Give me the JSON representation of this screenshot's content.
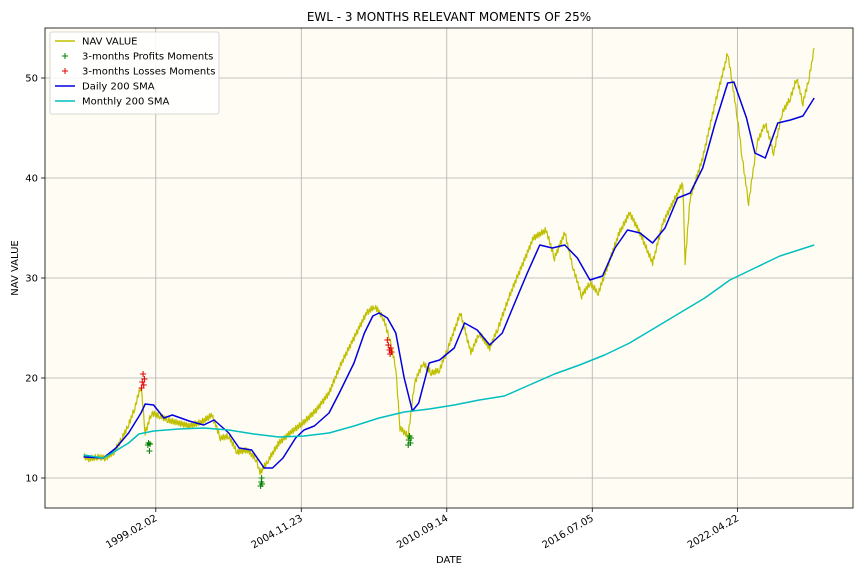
{
  "chart_data": {
    "type": "line",
    "title": "EWL - 3 MONTHS RELEVANT MOMENTS OF 25%",
    "xlabel": "DATE",
    "ylabel": "NAV VALUE",
    "xlim": [
      "1994-09-01",
      "2026-12-01"
    ],
    "ylim": [
      7,
      55
    ],
    "xticks": [
      "1999.02.02",
      "2004.11.23",
      "2010.09.14",
      "2016.07.05",
      "2022.04.22"
    ],
    "yticks": [
      10,
      20,
      30,
      40,
      50
    ],
    "grid": true,
    "legend_position": "top-left",
    "background": "#fffcf3",
    "series": [
      {
        "name": "NAV VALUE",
        "color": "#bfbf00",
        "style": "line",
        "points": [
          [
            "1996-03-18",
            12.2
          ],
          [
            "1996-06-01",
            11.9
          ],
          [
            "1996-10-01",
            12.1
          ],
          [
            "1997-02-01",
            12.0
          ],
          [
            "1997-06-01",
            12.6
          ],
          [
            "1997-10-01",
            14.0
          ],
          [
            "1998-01-01",
            15.3
          ],
          [
            "1998-04-01",
            17.0
          ],
          [
            "1998-07-01",
            19.3
          ],
          [
            "1998-09-01",
            14.5
          ],
          [
            "1998-12-01",
            16.5
          ],
          [
            "1999-04-01",
            16.2
          ],
          [
            "1999-08-01",
            15.8
          ],
          [
            "2000-01-01",
            15.5
          ],
          [
            "2000-06-01",
            15.2
          ],
          [
            "2000-12-01",
            15.6
          ],
          [
            "2001-05-01",
            16.3
          ],
          [
            "2001-09-01",
            14.0
          ],
          [
            "2002-01-01",
            14.2
          ],
          [
            "2002-05-01",
            12.6
          ],
          [
            "2002-10-01",
            12.8
          ],
          [
            "2003-02-01",
            11.9
          ],
          [
            "2003-04-01",
            10.5
          ],
          [
            "2003-08-01",
            11.8
          ],
          [
            "2004-01-01",
            13.5
          ],
          [
            "2004-07-01",
            14.6
          ],
          [
            "2005-01-01",
            15.6
          ],
          [
            "2005-07-01",
            16.8
          ],
          [
            "2006-01-01",
            18.5
          ],
          [
            "2006-07-01",
            21.5
          ],
          [
            "2007-01-01",
            24.0
          ],
          [
            "2007-07-01",
            26.5
          ],
          [
            "2007-11-01",
            27.2
          ],
          [
            "2008-03-01",
            26.0
          ],
          [
            "2008-06-01",
            24.0
          ],
          [
            "2008-09-01",
            21.0
          ],
          [
            "2008-11-01",
            15.0
          ],
          [
            "2009-03-01",
            14.2
          ],
          [
            "2009-06-01",
            19.5
          ],
          [
            "2009-10-01",
            21.5
          ],
          [
            "2010-02-01",
            20.5
          ],
          [
            "2010-06-01",
            20.8
          ],
          [
            "2010-10-01",
            23.0
          ],
          [
            "2011-04-01",
            26.5
          ],
          [
            "2011-09-01",
            22.5
          ],
          [
            "2012-01-01",
            24.5
          ],
          [
            "2012-06-01",
            23.0
          ],
          [
            "2012-10-01",
            25.0
          ],
          [
            "2013-04-01",
            28.5
          ],
          [
            "2013-10-01",
            31.5
          ],
          [
            "2014-03-01",
            34.0
          ],
          [
            "2014-09-01",
            34.8
          ],
          [
            "2015-01-01",
            32.0
          ],
          [
            "2015-06-01",
            34.5
          ],
          [
            "2015-10-01",
            31.0
          ],
          [
            "2016-02-01",
            28.2
          ],
          [
            "2016-06-01",
            29.5
          ],
          [
            "2016-10-01",
            28.5
          ],
          [
            "2017-03-01",
            31.5
          ],
          [
            "2017-08-01",
            34.5
          ],
          [
            "2018-01-01",
            36.5
          ],
          [
            "2018-06-01",
            34.5
          ],
          [
            "2018-12-01",
            31.5
          ],
          [
            "2019-05-01",
            35.5
          ],
          [
            "2019-12-01",
            38.5
          ],
          [
            "2020-02-15",
            39.5
          ],
          [
            "2020-03-20",
            31.5
          ],
          [
            "2020-06-01",
            38.0
          ],
          [
            "2020-12-01",
            42.0
          ],
          [
            "2021-06-01",
            47.5
          ],
          [
            "2021-12-01",
            52.5
          ],
          [
            "2022-04-22",
            46.0
          ],
          [
            "2022-07-01",
            42.0
          ],
          [
            "2022-10-01",
            37.5
          ],
          [
            "2023-02-01",
            43.5
          ],
          [
            "2023-06-01",
            45.5
          ],
          [
            "2023-10-01",
            42.5
          ],
          [
            "2024-02-01",
            46.5
          ],
          [
            "2024-06-01",
            48.0
          ],
          [
            "2024-09-01",
            50.0
          ],
          [
            "2024-12-01",
            47.5
          ],
          [
            "2025-03-01",
            50.0
          ],
          [
            "2025-05-15",
            53.0
          ]
        ]
      },
      {
        "name": "3-months Profits Moments",
        "color": "#008000",
        "style": "marker",
        "points": [
          [
            "1998-10-10",
            13.3
          ],
          [
            "1998-10-20",
            13.5
          ],
          [
            "1998-11-01",
            12.7
          ],
          [
            "1998-11-10",
            13.4
          ],
          [
            "2003-04-10",
            9.2
          ],
          [
            "2003-04-20",
            9.6
          ],
          [
            "2003-04-25",
            10.0
          ],
          [
            "2003-05-01",
            9.4
          ],
          [
            "2009-03-01",
            13.3
          ],
          [
            "2009-03-10",
            13.8
          ],
          [
            "2009-03-20",
            14.2
          ],
          [
            "2009-04-01",
            13.5
          ],
          [
            "2009-04-10",
            14.0
          ]
        ]
      },
      {
        "name": "3-months Losses Moments",
        "color": "#e00000",
        "style": "marker",
        "points": [
          [
            "1998-07-10",
            19.0
          ],
          [
            "1998-07-20",
            19.6
          ],
          [
            "1998-08-01",
            20.4
          ],
          [
            "1998-08-10",
            19.3
          ],
          [
            "1998-08-20",
            19.9
          ],
          [
            "2008-05-01",
            23.8
          ],
          [
            "2008-05-15",
            23.3
          ],
          [
            "2008-06-01",
            22.8
          ],
          [
            "2008-06-10",
            22.4
          ],
          [
            "2008-06-20",
            23.0
          ],
          [
            "2008-07-01",
            22.6
          ]
        ]
      },
      {
        "name": "Daily 200 SMA",
        "color": "#0000e0",
        "style": "line",
        "points": [
          [
            "1996-03-18",
            12.1
          ],
          [
            "1997-01-01",
            12.0
          ],
          [
            "1997-07-01",
            13.0
          ],
          [
            "1998-01-01",
            14.5
          ],
          [
            "1998-07-01",
            16.5
          ],
          [
            "1998-09-01",
            17.4
          ],
          [
            "1999-01-01",
            17.3
          ],
          [
            "1999-06-01",
            16.0
          ],
          [
            "1999-10-01",
            16.3
          ],
          [
            "2000-06-01",
            15.7
          ],
          [
            "2001-01-01",
            15.3
          ],
          [
            "2001-06-01",
            15.8
          ],
          [
            "2002-01-01",
            14.5
          ],
          [
            "2002-06-01",
            13.0
          ],
          [
            "2002-12-01",
            12.8
          ],
          [
            "2003-06-01",
            11.0
          ],
          [
            "2003-10-01",
            11.0
          ],
          [
            "2004-03-01",
            12.0
          ],
          [
            "2004-09-01",
            14.0
          ],
          [
            "2005-01-01",
            14.8
          ],
          [
            "2005-06-01",
            15.2
          ],
          [
            "2006-01-01",
            16.5
          ],
          [
            "2006-06-01",
            18.5
          ],
          [
            "2007-01-01",
            21.5
          ],
          [
            "2007-06-01",
            24.5
          ],
          [
            "2007-10-01",
            26.2
          ],
          [
            "2008-01-01",
            26.5
          ],
          [
            "2008-05-01",
            26.0
          ],
          [
            "2008-09-01",
            24.5
          ],
          [
            "2009-01-01",
            20.0
          ],
          [
            "2009-05-01",
            16.7
          ],
          [
            "2009-08-01",
            17.5
          ],
          [
            "2010-01-01",
            21.5
          ],
          [
            "2010-06-01",
            21.8
          ],
          [
            "2011-01-01",
            23.0
          ],
          [
            "2011-06-01",
            25.5
          ],
          [
            "2011-12-01",
            24.8
          ],
          [
            "2012-06-01",
            23.3
          ],
          [
            "2012-12-01",
            24.5
          ],
          [
            "2013-06-01",
            27.5
          ],
          [
            "2013-12-01",
            30.5
          ],
          [
            "2014-06-01",
            33.3
          ],
          [
            "2014-12-01",
            33.0
          ],
          [
            "2015-06-01",
            33.3
          ],
          [
            "2015-12-01",
            32.0
          ],
          [
            "2016-06-01",
            29.8
          ],
          [
            "2016-12-01",
            30.2
          ],
          [
            "2017-06-01",
            33.0
          ],
          [
            "2017-12-01",
            34.8
          ],
          [
            "2018-06-01",
            34.5
          ],
          [
            "2018-12-01",
            33.5
          ],
          [
            "2019-06-01",
            35.0
          ],
          [
            "2019-12-01",
            38.0
          ],
          [
            "2020-06-01",
            38.5
          ],
          [
            "2020-12-01",
            41.0
          ],
          [
            "2021-06-01",
            45.5
          ],
          [
            "2021-12-01",
            49.5
          ],
          [
            "2022-03-01",
            49.6
          ],
          [
            "2022-09-01",
            46.0
          ],
          [
            "2023-01-01",
            42.5
          ],
          [
            "2023-06-01",
            42.0
          ],
          [
            "2023-12-01",
            45.5
          ],
          [
            "2024-06-01",
            45.8
          ],
          [
            "2024-12-01",
            46.2
          ],
          [
            "2025-05-15",
            48.0
          ]
        ]
      },
      {
        "name": "Monthly 200 SMA",
        "color": "#00bfbf",
        "style": "line",
        "points": [
          [
            "1996-03-18",
            12.3
          ],
          [
            "1997-01-01",
            12.0
          ],
          [
            "1997-06-01",
            12.6
          ],
          [
            "1998-01-01",
            13.5
          ],
          [
            "1998-06-01",
            14.4
          ],
          [
            "1999-01-01",
            14.7
          ],
          [
            "2000-01-01",
            14.9
          ],
          [
            "2001-01-01",
            15.0
          ],
          [
            "2002-01-01",
            14.8
          ],
          [
            "2003-01-01",
            14.4
          ],
          [
            "2004-01-01",
            14.1
          ],
          [
            "2005-01-01",
            14.2
          ],
          [
            "2006-01-01",
            14.5
          ],
          [
            "2007-01-01",
            15.2
          ],
          [
            "2008-01-01",
            16.0
          ],
          [
            "2009-01-01",
            16.6
          ],
          [
            "2010-01-01",
            16.9
          ],
          [
            "2011-01-01",
            17.3
          ],
          [
            "2012-01-01",
            17.8
          ],
          [
            "2013-01-01",
            18.2
          ],
          [
            "2014-01-01",
            19.3
          ],
          [
            "2015-01-01",
            20.4
          ],
          [
            "2016-01-01",
            21.3
          ],
          [
            "2017-01-01",
            22.3
          ],
          [
            "2018-01-01",
            23.5
          ],
          [
            "2019-01-01",
            25.0
          ],
          [
            "2020-01-01",
            26.5
          ],
          [
            "2021-01-01",
            28.0
          ],
          [
            "2022-01-01",
            29.8
          ],
          [
            "2023-01-01",
            31.0
          ],
          [
            "2024-01-01",
            32.2
          ],
          [
            "2025-05-15",
            33.3
          ]
        ]
      }
    ]
  }
}
